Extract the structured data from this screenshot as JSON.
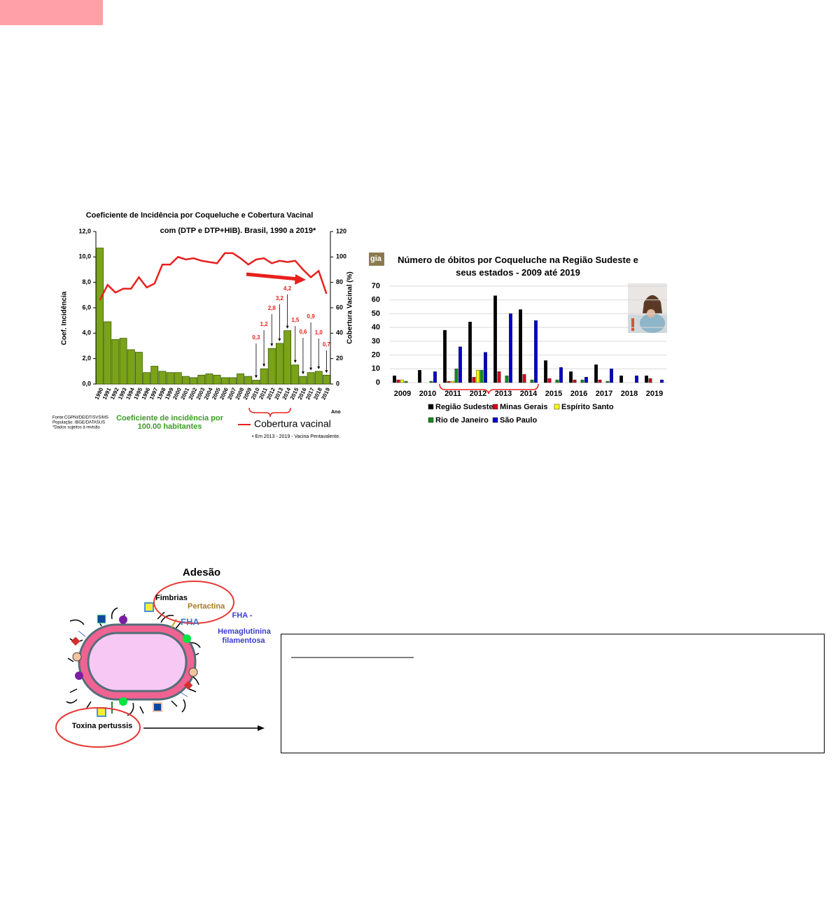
{
  "chart_data": [
    {
      "type": "bar",
      "title": "Coeficiente de Incidência por Coqueluche e Cobertura  Vacinal",
      "subtitle": "com (DTP e DTP+HIB). Brasil, 1990 a 2019*",
      "xlabel": "Ano",
      "ylabel": "Coef. Incidência",
      "y2label": "Cobertura Vacinal (%)",
      "categories": [
        "1990",
        "1991",
        "1992",
        "1993",
        "1994",
        "1995",
        "1996",
        "1997",
        "1998",
        "1999",
        "2000",
        "2001",
        "2002",
        "2003",
        "2004",
        "2005",
        "2006",
        "2007",
        "2008",
        "2009",
        "2010",
        "2011",
        "2012",
        "2013",
        "2014",
        "2015",
        "2016",
        "2017",
        "2018",
        "2019"
      ],
      "series": [
        {
          "name": "Coeficiente de incidência por 100.00 habitantes",
          "color": "#7aa31a",
          "values": [
            10.7,
            4.9,
            3.5,
            3.6,
            2.7,
            2.5,
            0.9,
            1.4,
            1.0,
            0.9,
            0.9,
            0.6,
            0.5,
            0.7,
            0.8,
            0.7,
            0.5,
            0.5,
            0.8,
            0.6,
            0.3,
            1.2,
            2.8,
            3.2,
            4.2,
            1.5,
            0.6,
            0.9,
            1.0,
            0.7
          ],
          "value_labels": [
            null,
            null,
            null,
            null,
            null,
            null,
            null,
            null,
            null,
            null,
            null,
            null,
            null,
            null,
            null,
            null,
            null,
            null,
            null,
            null,
            "0,3",
            "1,2",
            "2,8",
            "3,2",
            "4,2",
            "1,5",
            "0,6",
            "0,9",
            "1,0",
            "0,7"
          ]
        },
        {
          "name": "Cobertura vacinal",
          "color": "#e8201e",
          "type": "line",
          "axis": "y2",
          "values": [
            66,
            78,
            72,
            75,
            75,
            84,
            76,
            79,
            94,
            94,
            100,
            98,
            99,
            97,
            96,
            95,
            103,
            103,
            99,
            94,
            98,
            99,
            95,
            97,
            96,
            97,
            90,
            84,
            89,
            71
          ]
        }
      ],
      "ylim": [
        0,
        12
      ],
      "yticks": [
        {
          "value": 0,
          "label": "0,0"
        },
        {
          "value": 2,
          "label": "2,0"
        },
        {
          "value": 4,
          "label": "4,0"
        },
        {
          "value": 6,
          "label": "6,0"
        },
        {
          "value": 8,
          "label": "8,0"
        },
        {
          "value": 10,
          "label": "10,0"
        },
        {
          "value": 12,
          "label": "12,0"
        }
      ],
      "y2lim": [
        0,
        120
      ],
      "y2ticks": [
        0,
        20,
        40,
        60,
        80,
        100,
        120
      ],
      "source": [
        "Fonte:CGPNI/DEIDT/SVS/MS",
        "População: IBGE/DATASUS",
        "*Dados sujeitos à revisão"
      ],
      "footnote": "• Em 2013 - 2019 - Vacina Pentavalente."
    },
    {
      "type": "bar",
      "badge": "gia",
      "title": "Número de óbitos por Coqueluche  na Região Sudeste e seus estados - 2009 até 2019",
      "categories": [
        "2009",
        "2010",
        "2011",
        "2012",
        "2013",
        "2014",
        "2015",
        "2016",
        "2017",
        "2018",
        "2019"
      ],
      "series": [
        {
          "name": "Região Sudeste",
          "color": "#000000",
          "values": [
            5,
            9,
            38,
            44,
            63,
            53,
            16,
            8,
            13,
            5,
            5
          ]
        },
        {
          "name": "Minas Gerais",
          "color": "#d0021b",
          "values": [
            2,
            0,
            1,
            4,
            8,
            6,
            3,
            2,
            2,
            0,
            3
          ]
        },
        {
          "name": "Espírito Santo",
          "color": "#ffff00",
          "values": [
            2,
            0,
            1,
            9,
            0,
            0,
            0,
            0,
            0,
            0,
            0
          ]
        },
        {
          "name": "Rio de Janeiro",
          "color": "#138a1c",
          "values": [
            1,
            1,
            10,
            9,
            5,
            2,
            2,
            2,
            1,
            0,
            0
          ]
        },
        {
          "name": "São Paulo",
          "color": "#0000cc",
          "values": [
            0,
            8,
            26,
            22,
            50,
            45,
            11,
            4,
            10,
            5,
            2
          ]
        }
      ],
      "ylim": [
        0,
        70
      ],
      "yticks": [
        0,
        10,
        20,
        30,
        40,
        50,
        60,
        70
      ],
      "grid": true
    }
  ],
  "diagram": {
    "title": "Adesão",
    "labels": [
      "Fimbrias",
      "Pertactina",
      "FHA",
      "FHA -",
      "Hemaglutinina",
      "filamentosa",
      "Toxina pertussis"
    ]
  }
}
